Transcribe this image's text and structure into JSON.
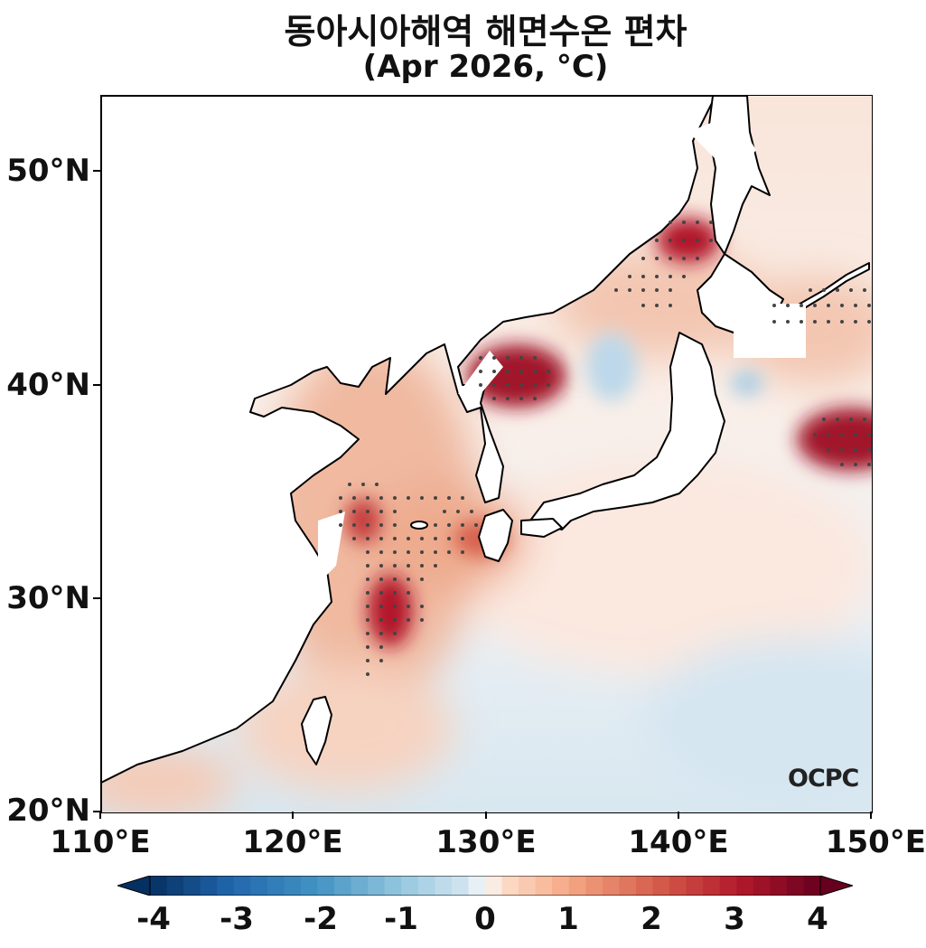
{
  "title": {
    "line1": "동아시아해역 해면수온 편차",
    "line2": "(Apr 2026, °C)"
  },
  "map": {
    "lon_range": [
      110,
      150
    ],
    "lat_range": [
      20,
      53.5
    ],
    "y_ticks": [
      "50°N",
      "40°N",
      "30°N",
      "20°N"
    ],
    "x_ticks": [
      "110°E",
      "120°E",
      "130°E",
      "140°E",
      "150°E"
    ],
    "watermark": "OCPC",
    "land_color": "#ffffff",
    "coastline_color": "#000000",
    "stipple_color": "#444444"
  },
  "colorbar": {
    "min": -4,
    "max": 4,
    "labels": [
      "-4",
      "-3",
      "-2",
      "-1",
      "0",
      "1",
      "2",
      "3",
      "4"
    ],
    "extend": "both",
    "colormap": "RdBu_r",
    "cold_color": "#053061",
    "neutral_color": "#f7f7f7",
    "warm_color": "#67001f"
  }
}
